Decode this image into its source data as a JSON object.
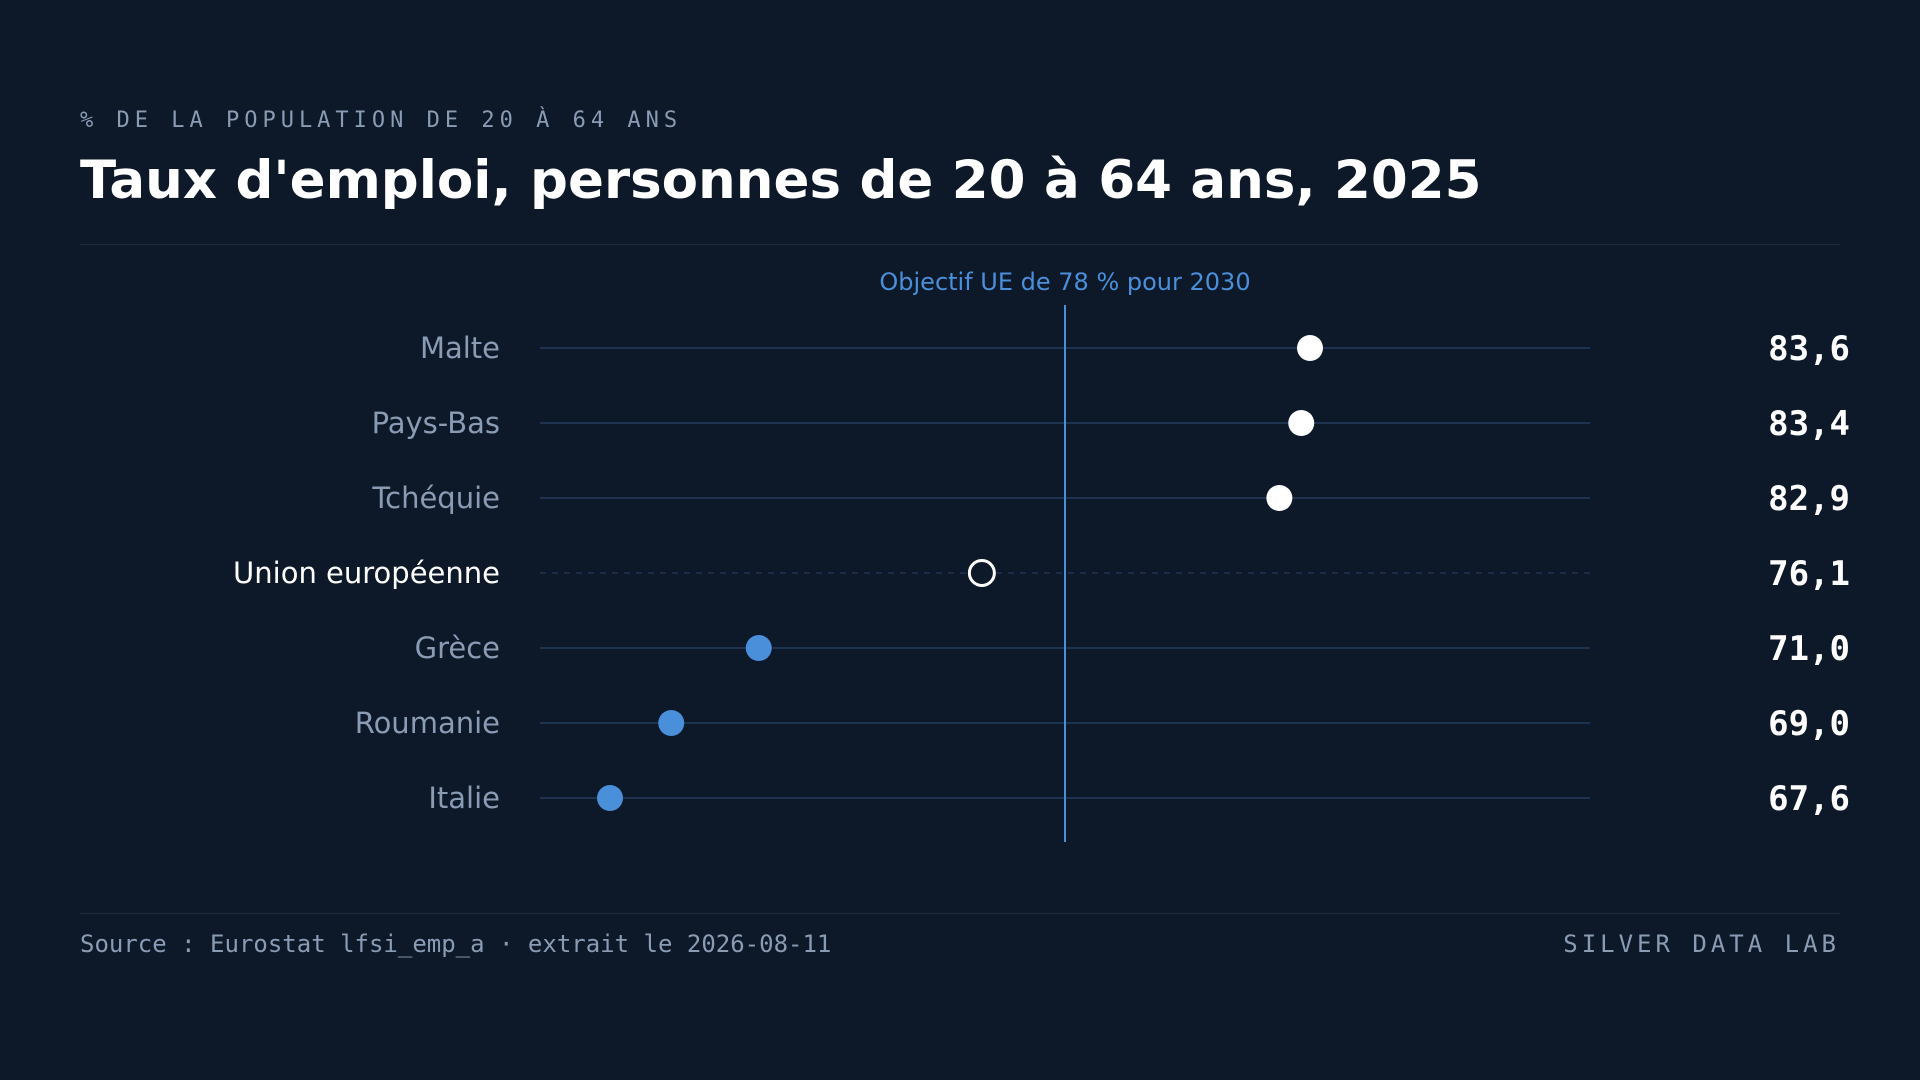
{
  "header": {
    "subtitle": "% DE LA POPULATION DE 20 À 64 ANS",
    "title": "Taux d'emploi, personnes de 20 à 64 ans, 2025"
  },
  "footer": {
    "source": "Source : Eurostat lfsi_emp_a · extrait le 2026-08-11",
    "brand": "SILVER DATA LAB"
  },
  "colors": {
    "background": "#0d1829",
    "above_target": "#ffffff",
    "below_target": "#4a8fd9",
    "reference": "#4a8fd9",
    "grid": "#1e3350",
    "label": "#8a9bb4",
    "highlight_label": "#ffffff"
  },
  "chart_data": {
    "type": "dot",
    "title": "Taux d'emploi, personnes de 20 à 64 ans, 2025",
    "unit": "% de la population de 20 à 64 ans",
    "xlim": [
      66,
      90
    ],
    "grid": false,
    "reference_line": {
      "value": 78,
      "label": "Objectif UE de 78 % pour 2030"
    },
    "categories": [
      "Malte",
      "Pays-Bas",
      "Tchéquie",
      "Union européenne",
      "Grèce",
      "Roumanie",
      "Italie"
    ],
    "values": [
      83.6,
      83.4,
      82.9,
      76.1,
      71.0,
      69.0,
      67.6
    ],
    "value_labels": [
      "83,6",
      "83,4",
      "82,9",
      "76,1",
      "71,0",
      "69,0",
      "67,6"
    ],
    "highlight": "Union européenne"
  }
}
